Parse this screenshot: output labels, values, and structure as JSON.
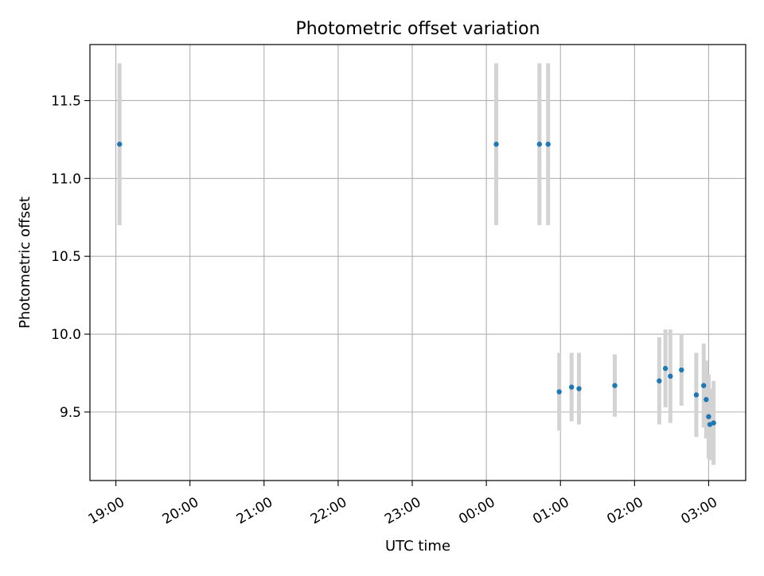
{
  "chart_data": {
    "type": "scatter",
    "title": "Photometric offset variation",
    "xlabel": "UTC time",
    "ylabel": "Photometric offset",
    "x_axis_type": "time",
    "xlim": [
      "18:39",
      "03:30"
    ],
    "ylim": [
      9.06,
      11.86
    ],
    "xticks": [
      "19:00",
      "20:00",
      "21:00",
      "22:00",
      "23:00",
      "00:00",
      "01:00",
      "02:00",
      "03:00"
    ],
    "yticks": [
      "9.5",
      "10.0",
      "10.5",
      "11.0",
      "11.5"
    ],
    "ytick_values": [
      9.5,
      10.0,
      10.5,
      11.0,
      11.5
    ],
    "grid": true,
    "colors": {
      "point": "#1f77b4",
      "errorbar": "#d3d3d3",
      "grid": "#b0b0b0"
    },
    "points": [
      {
        "x": "19:03",
        "y": 11.22,
        "yerr": 0.52
      },
      {
        "x": "00:08",
        "y": 11.22,
        "yerr": 0.52
      },
      {
        "x": "00:43",
        "y": 11.22,
        "yerr": 0.52
      },
      {
        "x": "00:50",
        "y": 11.22,
        "yerr": 0.52
      },
      {
        "x": "00:59",
        "y": 9.63,
        "yerr": 0.25
      },
      {
        "x": "01:09",
        "y": 9.66,
        "yerr": 0.22
      },
      {
        "x": "01:15",
        "y": 9.65,
        "yerr": 0.23
      },
      {
        "x": "01:44",
        "y": 9.67,
        "yerr": 0.2
      },
      {
        "x": "02:20",
        "y": 9.7,
        "yerr": 0.28
      },
      {
        "x": "02:25",
        "y": 9.78,
        "yerr": 0.25
      },
      {
        "x": "02:29",
        "y": 9.73,
        "yerr": 0.3
      },
      {
        "x": "02:38",
        "y": 9.77,
        "yerr": 0.23
      },
      {
        "x": "02:50",
        "y": 9.61,
        "yerr": 0.27
      },
      {
        "x": "02:56",
        "y": 9.67,
        "yerr": 0.27
      },
      {
        "x": "02:58",
        "y": 9.58,
        "yerr": 0.25
      },
      {
        "x": "03:00",
        "y": 9.47,
        "yerr": 0.27
      },
      {
        "x": "03:01",
        "y": 9.42,
        "yerr": 0.23
      },
      {
        "x": "03:04",
        "y": 9.43,
        "yerr": 0.27
      }
    ]
  }
}
